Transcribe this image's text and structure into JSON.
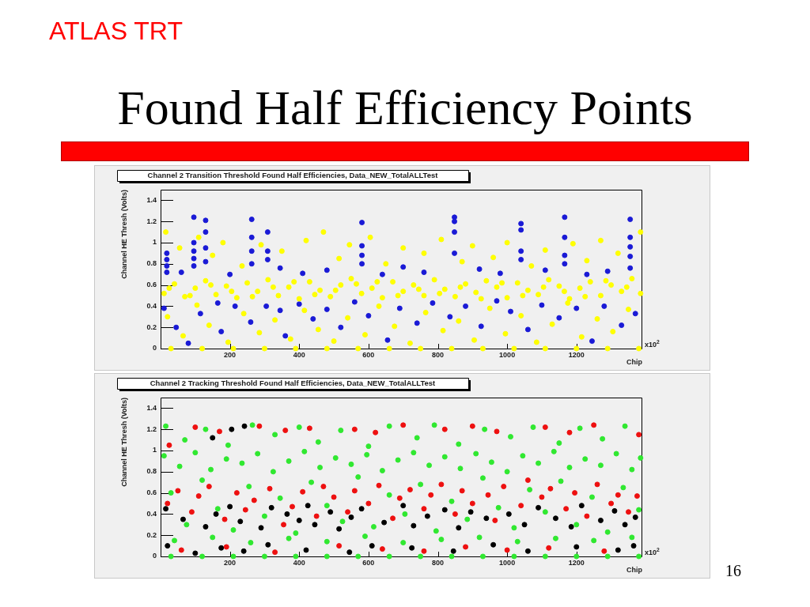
{
  "chart_data": [
    {
      "type": "scatter",
      "title": "Channel 2 Transition Threshold Found Half Efficiencies, Data_NEW_TotalALLTest",
      "xlabel": "Chip",
      "ylabel": "Channel HE Thresh (Volts)",
      "xlim": [
        0,
        1390
      ],
      "xticks": [
        200,
        400,
        600,
        800,
        1000,
        1200
      ],
      "ylim": [
        0,
        1.5
      ],
      "yticks": [
        0,
        0.2,
        0.4,
        0.6,
        0.8,
        1,
        1.2,
        1.4
      ],
      "marker": "circle",
      "annotations": [
        "ATLAS TRT",
        "Found Half Efficiency Points",
        "x10$^{2}$"
      ],
      "series": [
        {
          "color": "#ffff00",
          "x": [
            10,
            40,
            70,
            100,
            130,
            160,
            190,
            220,
            250,
            280,
            310,
            340,
            370,
            400,
            430,
            460,
            490,
            520,
            550,
            580,
            610,
            640,
            670,
            700,
            730,
            760,
            790,
            820,
            850,
            880,
            910,
            940,
            970,
            1000,
            1030,
            1060,
            1090,
            1120,
            1150,
            1180,
            1210,
            1240,
            1270,
            1300,
            1330,
            1360,
            1385,
            25,
            85,
            145,
            205,
            265,
            325,
            385,
            445,
            505,
            565,
            625,
            685,
            745,
            805,
            865,
            925,
            985,
            1045,
            1105,
            1165,
            1225,
            1285,
            1345,
            30,
            120,
            210,
            300,
            390,
            480,
            570,
            660,
            750,
            840,
            930,
            1020,
            1110,
            1200,
            1290,
            1380,
            15,
            55,
            110,
            150,
            180,
            235,
            290,
            350,
            420,
            470,
            515,
            545,
            605,
            650,
            700,
            760,
            810,
            870,
            900,
            960,
            1000,
            1070,
            1110,
            1190,
            1230,
            1270,
            1320,
            1385,
            20,
            65,
            105,
            140,
            195,
            240,
            285,
            330,
            375,
            415,
            455,
            500,
            540,
            590,
            630,
            675,
            720,
            765,
            815,
            860,
            905,
            950,
            995,
            1040,
            1085,
            1130,
            1175,
            1215,
            1260,
            1305,
            1350
          ],
          "values": [
            0.52,
            0.61,
            0.49,
            0.57,
            0.64,
            0.51,
            0.59,
            0.48,
            0.62,
            0.54,
            0.65,
            0.5,
            0.58,
            0.47,
            0.63,
            0.55,
            0.49,
            0.6,
            0.66,
            0.52,
            0.57,
            0.48,
            0.63,
            0.54,
            0.6,
            0.5,
            0.65,
            0.56,
            0.49,
            0.61,
            0.53,
            0.64,
            0.58,
            0.48,
            0.62,
            0.55,
            0.51,
            0.65,
            0.59,
            0.47,
            0.57,
            0.63,
            0.5,
            0.6,
            0.54,
            0.66,
            0.52,
            0.57,
            0.5,
            0.6,
            0.54,
            0.49,
            0.58,
            0.63,
            0.51,
            0.55,
            0.61,
            0.63,
            0.5,
            0.56,
            0.52,
            0.58,
            0.47,
            0.62,
            0.5,
            0.58,
            0.54,
            0.49,
            0.64,
            0.58,
            0,
            0,
            0,
            0,
            0,
            0,
            0,
            0,
            0,
            0,
            0,
            0,
            0,
            0,
            0,
            0,
            1.1,
            0.95,
            1.05,
            0.88,
            1,
            0.78,
            0.98,
            0.92,
            1.02,
            1.1,
            0.85,
            0.98,
            1.05,
            0.8,
            0.95,
            0.9,
            1.03,
            0.82,
            0.97,
            0.86,
            1,
            0.78,
            0.93,
            0.99,
            0.83,
            1.02,
            0.9,
            1.1,
            0.3,
            0.12,
            0.41,
            0.22,
            0.06,
            0.33,
            0.15,
            0.27,
            0.09,
            0.36,
            0.18,
            0.07,
            0.29,
            0.13,
            0.4,
            0.21,
            0.05,
            0.34,
            0.17,
            0.26,
            0.08,
            0.38,
            0.14,
            0.31,
            0.06,
            0.23,
            0.43,
            0.11,
            0.28,
            0.16,
            0.37
          ]
        },
        {
          "color": "#1a1ad6",
          "x": [
            18,
            18,
            18,
            18,
            96,
            96,
            96,
            96,
            96,
            130,
            130,
            130,
            130,
            263,
            263,
            263,
            263,
            309,
            309,
            309,
            581,
            581,
            581,
            581,
            848,
            848,
            848,
            848,
            1040,
            1040,
            1040,
            1040,
            1166,
            1166,
            1166,
            1166,
            1355,
            1355,
            1355,
            1355,
            1355,
            60,
            200,
            345,
            410,
            480,
            640,
            700,
            760,
            920,
            980,
            1110,
            1230,
            1290,
            10,
            45,
            80,
            115,
            165,
            175,
            215,
            260,
            305,
            345,
            360,
            400,
            440,
            480,
            520,
            560,
            600,
            655,
            690,
            740,
            785,
            835,
            880,
            925,
            970,
            1010,
            1060,
            1100,
            1150,
            1200,
            1245,
            1280,
            1330,
            1370
          ],
          "values": [
            0.9,
            0.84,
            0.78,
            0.72,
            1.24,
            1,
            0.92,
            0.85,
            0.78,
            1.21,
            1.1,
            0.95,
            0.82,
            1.22,
            1.05,
            0.92,
            0.8,
            1.1,
            0.92,
            0.84,
            1.19,
            0.97,
            0.88,
            0.8,
            1.24,
            1.2,
            1.1,
            0.9,
            1.18,
            1.12,
            0.92,
            0.84,
            1.24,
            1.05,
            0.88,
            0.8,
            1.22,
            1.05,
            0.96,
            0.87,
            0.76,
            0.72,
            0.7,
            0.76,
            0.71,
            0.74,
            0.7,
            0.77,
            0.72,
            0.75,
            0.71,
            0.74,
            0.7,
            0.73,
            0.38,
            0.2,
            0.05,
            0.33,
            0.43,
            0.16,
            0.4,
            0.25,
            0.4,
            0.36,
            0.12,
            0.42,
            0.28,
            0.37,
            0.2,
            0.44,
            0.31,
            0.08,
            0.38,
            0.24,
            0.43,
            0.3,
            0.4,
            0.21,
            0.45,
            0.35,
            0.18,
            0.41,
            0.29,
            0.38,
            0.07,
            0.4,
            0.22,
            0.33
          ]
        }
      ]
    },
    {
      "type": "scatter",
      "title": "Channel 2 Tracking Threshold Found Half Efficiencies, Data_NEW_TotalALLTest",
      "xlabel": "Chip",
      "ylabel": "Channel HE Thresh (Volts)",
      "xlim": [
        0,
        1390
      ],
      "xticks": [
        200,
        400,
        600,
        800,
        1000,
        1200
      ],
      "ylim": [
        0,
        1.5
      ],
      "yticks": [
        0,
        0.2,
        0.4,
        0.6,
        0.8,
        1,
        1.2,
        1.4
      ],
      "marker": "circle",
      "annotations": [
        "x10$^{2}$",
        "16"
      ],
      "series": [
        {
          "color": "#30e830",
          "x": [
            10,
            55,
            100,
            145,
            190,
            235,
            280,
            325,
            370,
            415,
            460,
            505,
            550,
            595,
            640,
            685,
            730,
            775,
            820,
            865,
            910,
            955,
            1000,
            1045,
            1090,
            1135,
            1180,
            1225,
            1270,
            1315,
            1360,
            1385,
            30,
            75,
            120,
            165,
            210,
            255,
            300,
            345,
            390,
            435,
            480,
            525,
            570,
            615,
            660,
            705,
            750,
            795,
            840,
            885,
            930,
            975,
            1020,
            1065,
            1110,
            1155,
            1200,
            1245,
            1290,
            1335,
            1380,
            40,
            150,
            260,
            370,
            480,
            590,
            700,
            810,
            920,
            1030,
            1140,
            1250,
            1360,
            30,
            120,
            210,
            300,
            390,
            480,
            570,
            660,
            750,
            840,
            930,
            1020,
            1110,
            1200,
            1290,
            1380,
            15,
            70,
            130,
            195,
            265,
            330,
            400,
            455,
            520,
            600,
            660,
            740,
            790,
            860,
            935,
            1010,
            1075,
            1150,
            1210,
            1275,
            1340
          ],
          "values": [
            0.95,
            0.85,
            0.98,
            0.82,
            0.92,
            0.88,
            0.97,
            0.8,
            0.9,
            0.99,
            0.84,
            0.93,
            0.87,
            0.96,
            0.81,
            0.91,
            0.98,
            0.86,
            0.94,
            0.83,
            0.97,
            0.89,
            0.8,
            0.95,
            0.88,
            0.99,
            0.84,
            0.92,
            0.86,
            0.97,
            0.82,
            0.93,
            0.6,
            0.3,
            0.72,
            0.45,
            0.25,
            0.66,
            0.38,
            0.55,
            0.22,
            0.7,
            0.48,
            0.33,
            0.75,
            0.28,
            0.58,
            0.4,
            0.68,
            0.24,
            0.52,
            0.35,
            0.74,
            0.46,
            0.27,
            0.63,
            0.42,
            0.71,
            0.3,
            0.56,
            0.23,
            0.65,
            0.44,
            0.15,
            0.18,
            0.13,
            0.17,
            0.14,
            0.19,
            0.13,
            0.16,
            0.18,
            0.14,
            0.17,
            0.15,
            0.18,
            0,
            0,
            0,
            0,
            0,
            0,
            0,
            0,
            0,
            0,
            0,
            0,
            0,
            0,
            0,
            0,
            1.23,
            1.1,
            1.2,
            1.05,
            1.24,
            1.15,
            1.22,
            1.08,
            1.19,
            1.04,
            1.23,
            1.12,
            1.24,
            1.06,
            1.2,
            1.13,
            1.22,
            1.07,
            1.21,
            1.11,
            1.23
          ]
        },
        {
          "color": "#ee1010",
          "x": [
            20,
            50,
            90,
            110,
            140,
            185,
            220,
            245,
            270,
            315,
            355,
            380,
            410,
            450,
            470,
            500,
            540,
            560,
            600,
            630,
            670,
            690,
            720,
            760,
            780,
            810,
            850,
            870,
            900,
            945,
            965,
            990,
            1040,
            1060,
            1100,
            1125,
            1170,
            1195,
            1230,
            1260,
            1300,
            1320,
            1350,
            1375,
            25,
            100,
            170,
            285,
            360,
            430,
            560,
            620,
            700,
            820,
            900,
            970,
            1110,
            1180,
            1250,
            1380,
            60,
            190,
            330,
            515,
            640,
            760,
            880,
            1000,
            1120,
            1280
          ],
          "values": [
            0.5,
            0.62,
            0.42,
            0.57,
            0.66,
            0.35,
            0.6,
            0.44,
            0.53,
            0.64,
            0.3,
            0.47,
            0.61,
            0.38,
            0.66,
            0.56,
            0.42,
            0.62,
            0.5,
            0.67,
            0.36,
            0.55,
            0.63,
            0.45,
            0.58,
            0.68,
            0.4,
            0.62,
            0.5,
            0.58,
            0.34,
            0.66,
            0.48,
            0.72,
            0.56,
            0.64,
            0.45,
            0.6,
            0.38,
            0.68,
            0.5,
            0.58,
            0.42,
            0.57,
            1.05,
            1.22,
            1.18,
            1.23,
            1.19,
            1.21,
            1.2,
            1.17,
            1.24,
            1.2,
            1.23,
            1.18,
            1.22,
            1.17,
            1.24,
            1.15,
            0.06,
            0.09,
            0.04,
            0.1,
            0.07,
            0.05,
            0.09,
            0.06,
            0.08,
            0.05
          ]
        },
        {
          "color": "#000000",
          "x": [
            15,
            65,
            130,
            160,
            200,
            230,
            290,
            320,
            365,
            400,
            425,
            445,
            490,
            515,
            550,
            580,
            645,
            700,
            730,
            770,
            820,
            860,
            895,
            940,
            1005,
            1050,
            1090,
            1140,
            1185,
            1215,
            1270,
            1310,
            1340,
            1370,
            20,
            100,
            175,
            240,
            310,
            420,
            545,
            610,
            725,
            845,
            960,
            1060,
            1200,
            1320,
            1365,
            150,
            205,
            242
          ],
          "values": [
            0.45,
            0.35,
            0.28,
            0.4,
            0.47,
            0.33,
            0.27,
            0.46,
            0.4,
            0.34,
            0.48,
            0.3,
            0.42,
            0.26,
            0.37,
            0.45,
            0.32,
            0.48,
            0.29,
            0.38,
            0.44,
            0.27,
            0.42,
            0.36,
            0.4,
            0.3,
            0.46,
            0.36,
            0.28,
            0.48,
            0.34,
            0.43,
            0.3,
            0.37,
            0.1,
            0.03,
            0.08,
            0.05,
            0.11,
            0.06,
            0.04,
            0.1,
            0.08,
            0.05,
            0.11,
            0.05,
            0.09,
            0.06,
            0.1,
            1.12,
            1.2,
            1.23
          ]
        }
      ]
    }
  ]
}
